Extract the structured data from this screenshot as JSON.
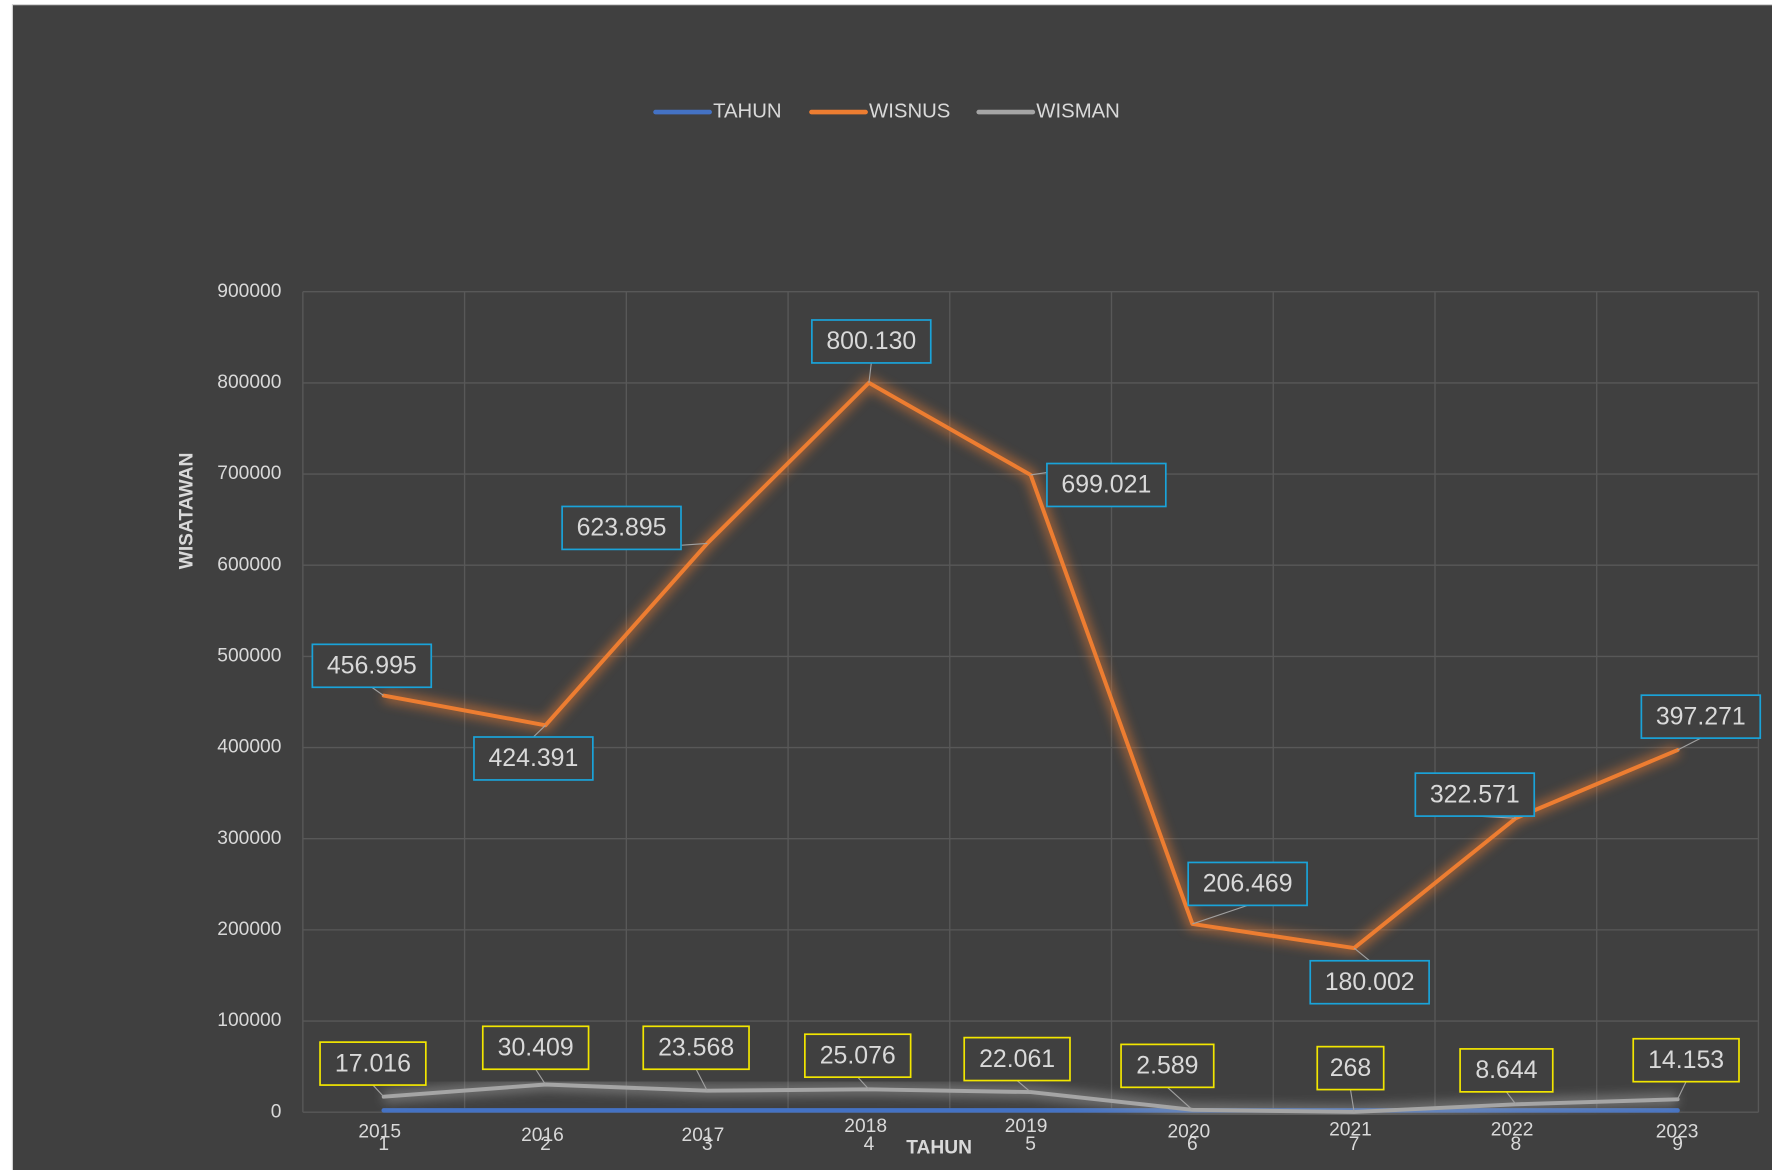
{
  "chart_data": {
    "type": "line",
    "categories": [
      "1",
      "2",
      "3",
      "4",
      "5",
      "6",
      "7",
      "8",
      "9"
    ],
    "series": [
      {
        "name": "TAHUN",
        "color": "#4472c4",
        "values": [
          2015,
          2016,
          2017,
          2018,
          2019,
          2020,
          2021,
          2022,
          2023
        ]
      },
      {
        "name": "WISNUS",
        "color": "#ed7d31",
        "values": [
          456995,
          424391,
          623895,
          800130,
          699021,
          206469,
          180002,
          322571,
          397271
        ],
        "value_labels": [
          "456.995",
          "424.391",
          "623.895",
          "800.130",
          "699.021",
          "206.469",
          "180.002",
          "322.571",
          "397.271"
        ]
      },
      {
        "name": "WISMAN",
        "color": "#a5a5a5",
        "values": [
          17016,
          30409,
          23568,
          25076,
          22061,
          2589,
          268,
          8644,
          14153
        ],
        "value_labels": [
          "17.016",
          "30.409",
          "23.568",
          "25.076",
          "22.061",
          "2.589",
          "268",
          "8.644",
          "14.153"
        ]
      }
    ],
    "ylim": [
      0,
      900000
    ],
    "yticks": [
      0,
      100000,
      200000,
      300000,
      400000,
      500000,
      600000,
      700000,
      800000,
      900000
    ],
    "y_label": "WISATAWAN",
    "x_label": "TAHUN",
    "grid": true,
    "legend": "top"
  }
}
